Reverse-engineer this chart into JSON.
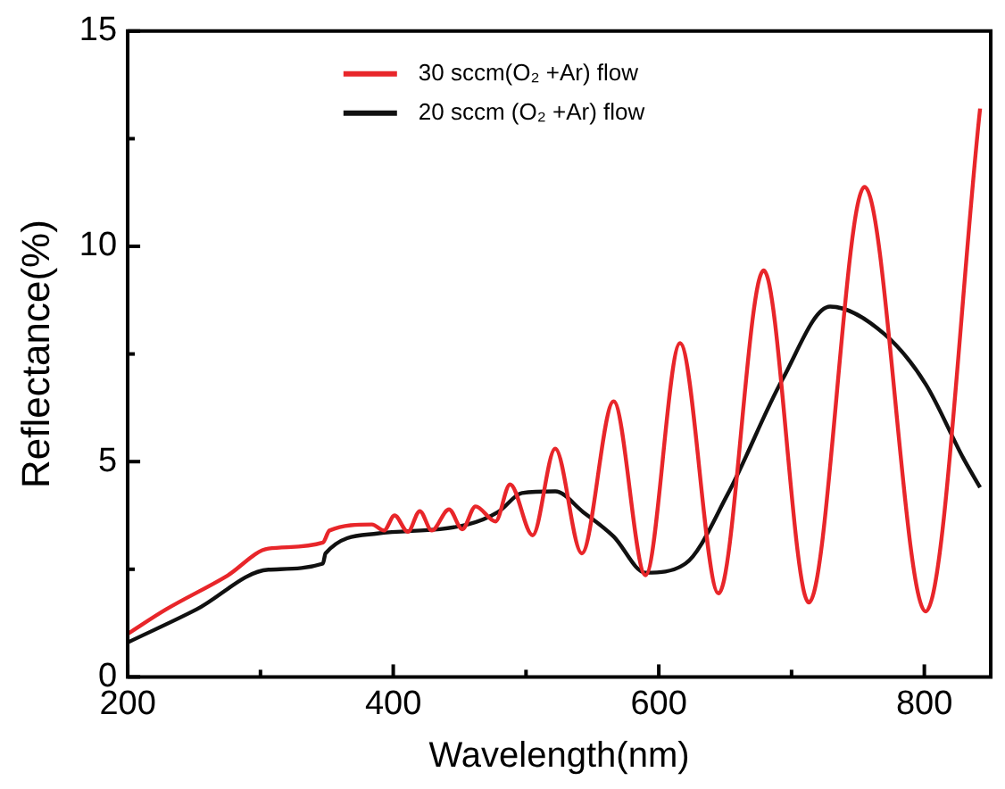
{
  "chart_data": {
    "type": "line",
    "xlabel": "Wavelength(nm)",
    "ylabel": "Reflectance(%)",
    "xlim": [
      200,
      850
    ],
    "xticks": [
      200,
      {
        "value": 300,
        "label": null
      },
      400,
      {
        "value": 500,
        "label": null
      },
      600,
      {
        "value": 700,
        "label": null
      },
      800
    ],
    "ylim": [
      0,
      15
    ],
    "yticks": [
      0,
      {
        "value": 2.5,
        "label": null
      },
      5,
      {
        "value": 7.5,
        "label": null
      },
      10,
      {
        "value": 12.5,
        "label": null
      },
      15
    ],
    "grid": false,
    "legend": "top",
    "marker": "none",
    "line_style": "solid",
    "series": [
      {
        "name": "30 sccm(O₂ +Ar) flow",
        "color": "#e8262a",
        "x": [
          200,
          229,
          275,
          306,
          347,
          352,
          384,
          393,
          401,
          411,
          420,
          429,
          442,
          452,
          462,
          477,
          488,
          505,
          522,
          542,
          566,
          590,
          616,
          645,
          679,
          713,
          755,
          801,
          842
        ],
        "values": [
          1.0,
          1.57,
          2.35,
          2.98,
          3.12,
          3.4,
          3.54,
          3.4,
          3.75,
          3.37,
          3.85,
          3.4,
          3.89,
          3.43,
          3.96,
          3.61,
          4.47,
          3.29,
          5.3,
          2.87,
          6.4,
          2.36,
          7.75,
          1.94,
          9.44,
          1.73,
          11.38,
          1.52,
          13.2
        ]
      },
      {
        "name": "20 sccm (O₂ +Ar) flow",
        "color": "#111111",
        "x": [
          200,
          252,
          306,
          347,
          349,
          388,
          456,
          479,
          497,
          522,
          543,
          566,
          590,
          620,
          652,
          693,
          729,
          770,
          801,
          829,
          842
        ],
        "values": [
          0.8,
          1.57,
          2.49,
          2.63,
          2.87,
          3.33,
          3.54,
          3.83,
          4.27,
          4.31,
          3.83,
          3.26,
          2.42,
          2.63,
          4.25,
          6.9,
          8.6,
          7.96,
          6.8,
          5.1,
          4.4
        ]
      }
    ]
  }
}
